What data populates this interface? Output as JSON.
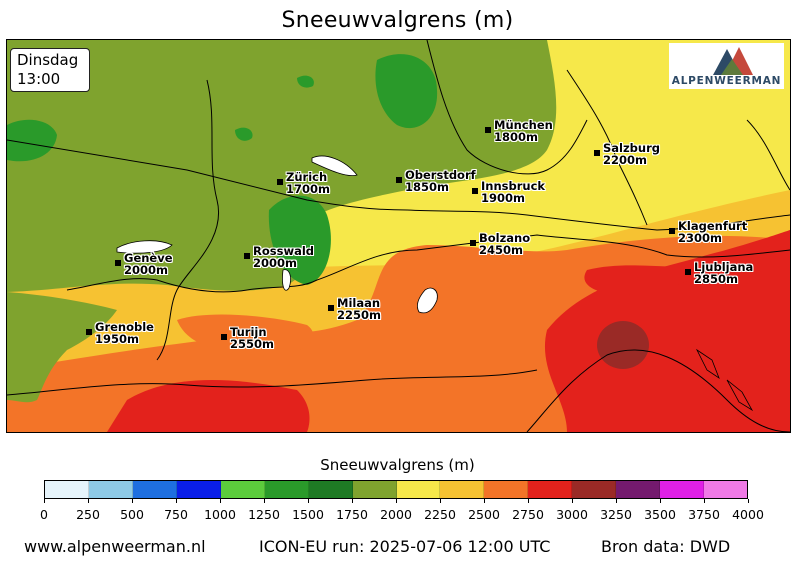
{
  "title": "Sneeuwvalgrens (m)",
  "time_box": {
    "day": "Dinsdag",
    "time": "13:00"
  },
  "logo": {
    "text": "ALPENWEERMAN",
    "colors": [
      "#2d4a66",
      "#c0392b",
      "#5b7d3c"
    ]
  },
  "cities": [
    {
      "name": "München",
      "value": "1800m"
    },
    {
      "name": "Salzburg",
      "value": "2200m"
    },
    {
      "name": "Zürich",
      "value": "1700m"
    },
    {
      "name": "Oberstdorf",
      "value": "1850m"
    },
    {
      "name": "Innsbruck",
      "value": "1900m"
    },
    {
      "name": "Klagenfurt",
      "value": "2300m"
    },
    {
      "name": "Bolzano",
      "value": "2450m"
    },
    {
      "name": "Rosswald",
      "value": "2000m"
    },
    {
      "name": "Genève",
      "value": "2000m"
    },
    {
      "name": "Ljubljana",
      "value": "2850m"
    },
    {
      "name": "Milaan",
      "value": "2250m"
    },
    {
      "name": "Grenoble",
      "value": "1950m"
    },
    {
      "name": "Turijn",
      "value": "2550m"
    }
  ],
  "colorbar": {
    "title": "Sneeuwvalgrens (m)",
    "ticks": [
      "0",
      "250",
      "500",
      "750",
      "1000",
      "1250",
      "1500",
      "1750",
      "2000",
      "2250",
      "2500",
      "2750",
      "3000",
      "3250",
      "3500",
      "3750",
      "4000"
    ],
    "colors": [
      "#e6f4fb",
      "#8ecae6",
      "#1e6fe0",
      "#0a1ee8",
      "#5ccc3c",
      "#2a9a2a",
      "#1e7a24",
      "#7fa32e",
      "#f6e84a",
      "#f6c232",
      "#f37428",
      "#e3221c",
      "#9a2a26",
      "#741a6e",
      "#e020e6",
      "#f07ae6"
    ]
  },
  "footer": {
    "website": "www.alpenweerman.nl",
    "run": "ICON-EU run: 2025-07-06 12:00 UTC",
    "source": "Bron data: DWD"
  }
}
